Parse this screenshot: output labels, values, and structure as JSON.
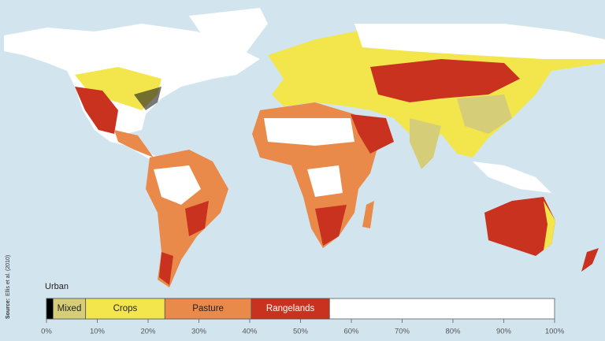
{
  "source_label": "Source:",
  "source": "Ellis et al. (2010)",
  "chart_data": {
    "type": "bar",
    "orientation": "horizontal",
    "stacked": true,
    "series": [
      {
        "name": "Urban",
        "color": "#000000",
        "values": [
          1.3
        ]
      },
      {
        "name": "Mixed",
        "color": "#d6cd78",
        "values": [
          6.4
        ]
      },
      {
        "name": "Crops",
        "color": "#f2e64c",
        "values": [
          15.6
        ]
      },
      {
        "name": "Pasture",
        "color": "#e98a4a",
        "values": [
          17
        ]
      },
      {
        "name": "Rangelands",
        "color": "#c8321f",
        "values": [
          15.4
        ]
      }
    ],
    "xlim": [
      0,
      100
    ],
    "xticks": [
      {
        "value": 0,
        "label": "0%"
      },
      {
        "value": 10,
        "label": "10%"
      },
      {
        "value": 20,
        "label": "20%"
      },
      {
        "value": 30,
        "label": "30%"
      },
      {
        "value": 40,
        "label": "40%"
      },
      {
        "value": 50,
        "label": "50%"
      },
      {
        "value": 60,
        "label": "60%"
      },
      {
        "value": 70,
        "label": "70%"
      },
      {
        "value": 80,
        "label": "80%"
      },
      {
        "value": 90,
        "label": "90%"
      },
      {
        "value": 100,
        "label": "100%"
      }
    ]
  }
}
